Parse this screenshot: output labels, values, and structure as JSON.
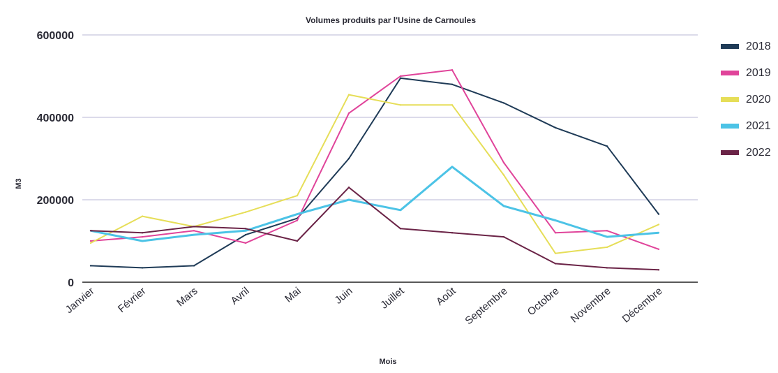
{
  "chart_data": {
    "type": "line",
    "title": "Volumes produits par l'Usine de Carnoules",
    "xlabel": "Mois",
    "ylabel": "M3",
    "ylim": [
      0,
      600000
    ],
    "yticks": [
      "0",
      "200000",
      "400000",
      "600000"
    ],
    "grid": true,
    "legend_position": "right",
    "categories": [
      "Janvier",
      "Février",
      "Mars",
      "Avril",
      "Mai",
      "Juin",
      "Juillet",
      "Août",
      "Septembre",
      "Octobre",
      "Novembre",
      "Décembre"
    ],
    "series": [
      {
        "name": "2018",
        "color": "#1f3b57",
        "values": [
          40000,
          35000,
          40000,
          115000,
          155000,
          300000,
          495000,
          480000,
          435000,
          375000,
          330000,
          165000
        ]
      },
      {
        "name": "2019",
        "color": "#e0449a",
        "values": [
          100000,
          110000,
          125000,
          95000,
          150000,
          410000,
          500000,
          515000,
          290000,
          120000,
          125000,
          80000
        ]
      },
      {
        "name": "2020",
        "color": "#e6de58",
        "values": [
          95000,
          160000,
          135000,
          170000,
          210000,
          455000,
          430000,
          430000,
          260000,
          70000,
          85000,
          140000
        ]
      },
      {
        "name": "2021",
        "color": "#4cc3e6",
        "values": [
          125000,
          100000,
          115000,
          125000,
          165000,
          200000,
          175000,
          280000,
          185000,
          150000,
          110000,
          120000
        ]
      },
      {
        "name": "2022",
        "color": "#6b2447",
        "values": [
          125000,
          120000,
          135000,
          130000,
          100000,
          230000,
          130000,
          120000,
          110000,
          45000,
          35000,
          30000
        ]
      }
    ]
  }
}
